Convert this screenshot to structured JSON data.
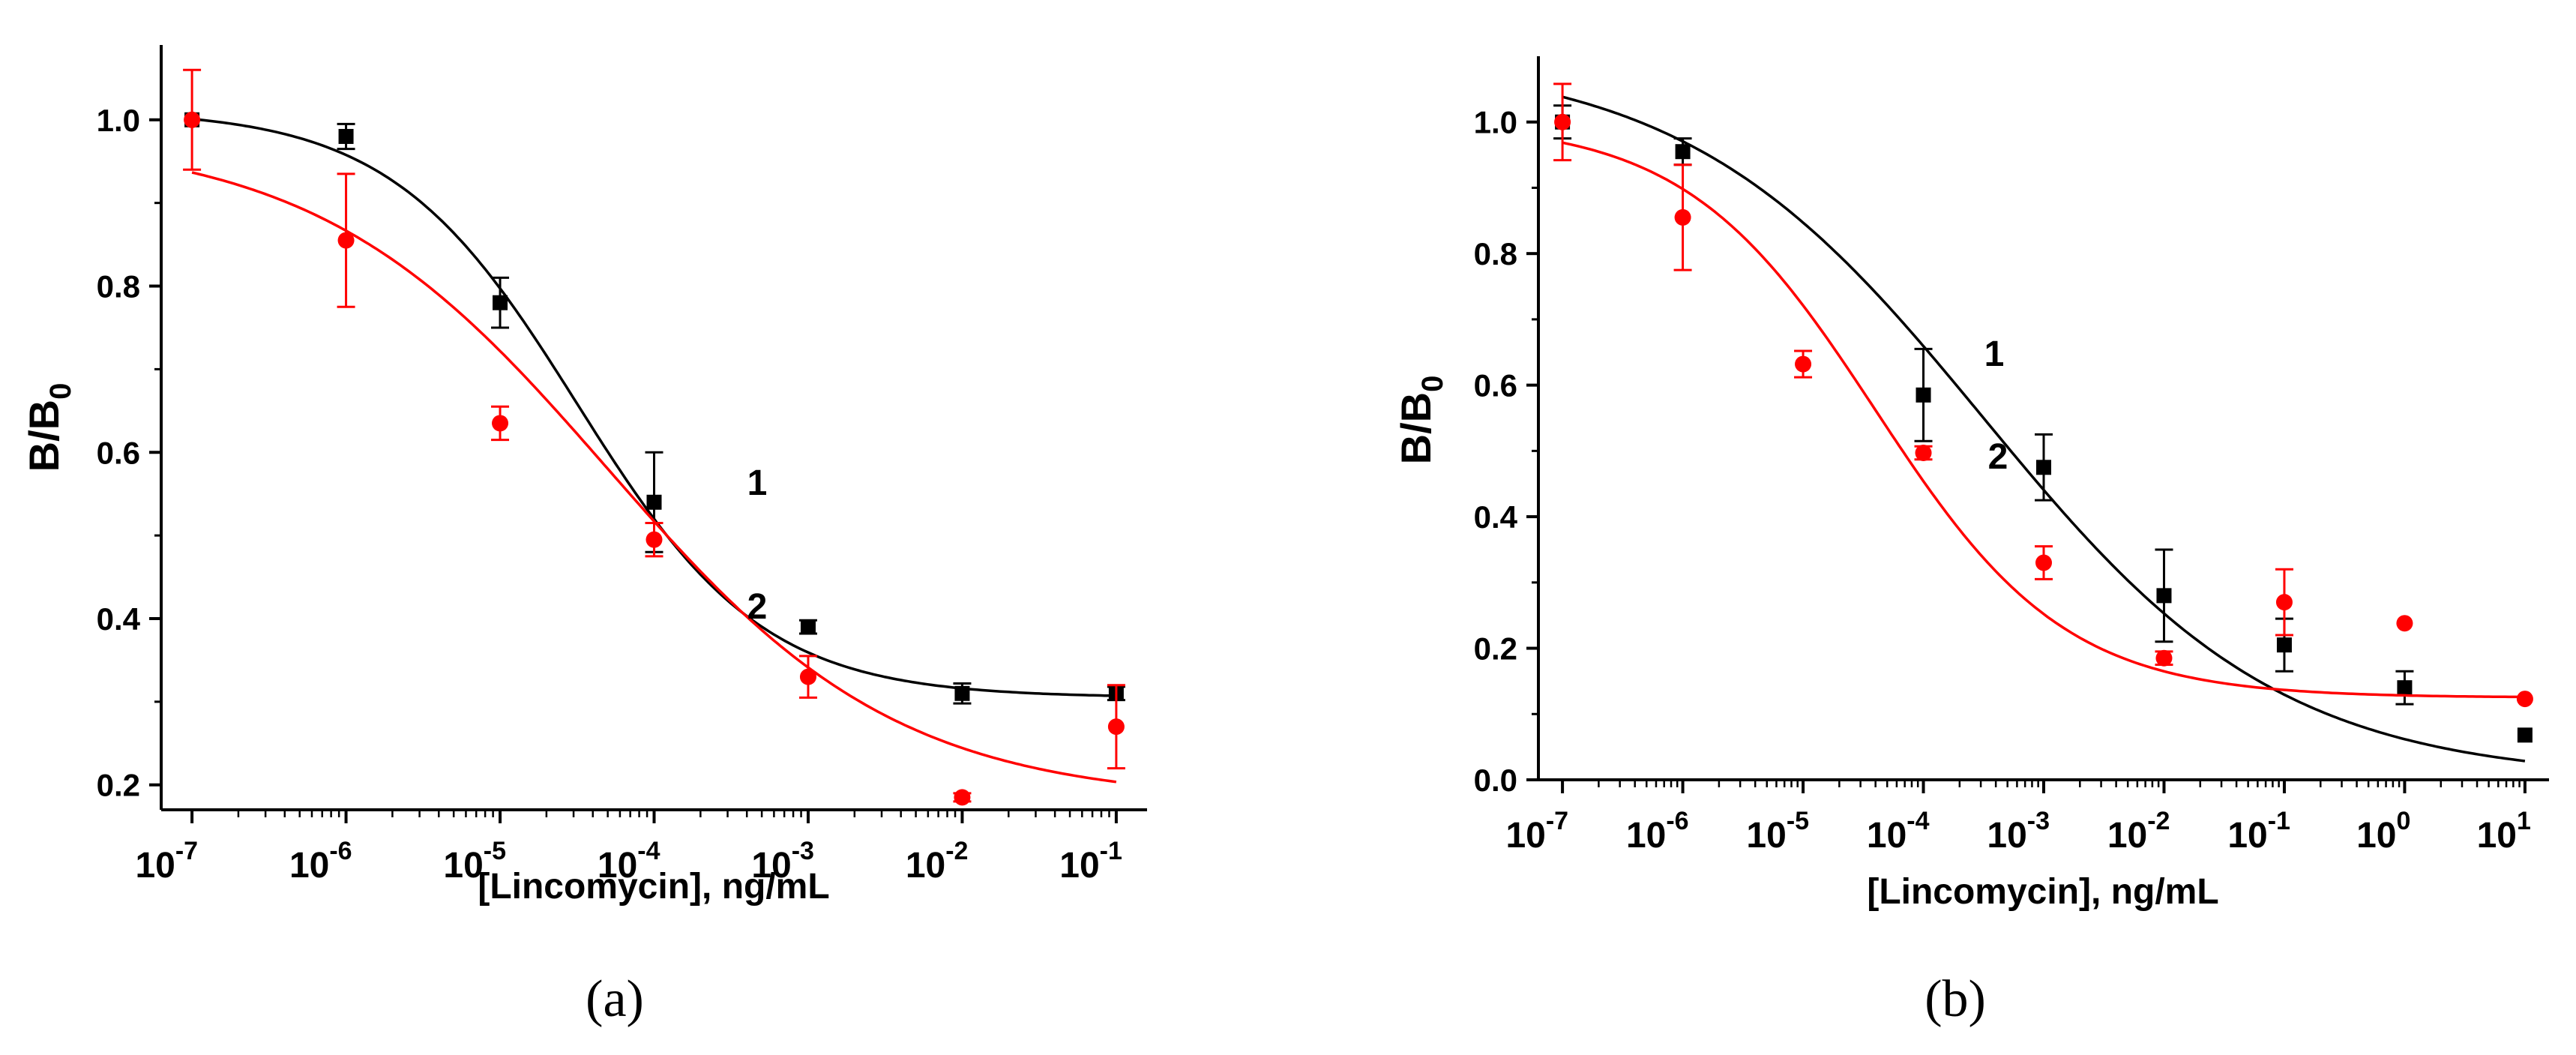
{
  "figure": {
    "panel_labels": [
      "(a)",
      "(b)"
    ]
  },
  "colors": {
    "series1": "#000000",
    "series2": "#ff0000"
  },
  "chart_data": [
    {
      "type": "scatter",
      "panel": "(a)",
      "xlabel": "[Lincomycin], ng/mL",
      "ylabel_main": "B/B",
      "ylabel_sub": "0",
      "xscale": "log",
      "xlim_exp": [
        -7,
        -1
      ],
      "x_tick_base": "10",
      "x_tick_exponents": [
        "-7",
        "-6",
        "-5",
        "-4",
        "-3",
        "-2",
        "-1"
      ],
      "ylim": [
        0.17,
        1.09
      ],
      "y_ticks": [
        "0.2",
        "0.4",
        "0.6",
        "0.8",
        "1.0"
      ],
      "series": [
        {
          "name": "1",
          "color": "#000000",
          "marker": "square",
          "x_exp": [
            -7,
            -6,
            -5,
            -4,
            -3,
            -2,
            -1
          ],
          "y": [
            1.0,
            0.98,
            0.78,
            0.54,
            0.39,
            0.31,
            0.31
          ],
          "err": [
            0.0,
            0.015,
            0.03,
            0.06,
            0.008,
            0.012,
            0.008
          ],
          "fit": {
            "A1": 1.012,
            "A2": 0.305,
            "x0_exp": -4.5,
            "p": 0.72
          }
        },
        {
          "name": "2",
          "color": "#ff0000",
          "marker": "circle",
          "x_exp": [
            -7,
            -6,
            -5,
            -4,
            -3,
            -2,
            -1
          ],
          "y": [
            1.0,
            0.855,
            0.635,
            0.495,
            0.33,
            0.185,
            0.27
          ],
          "err": [
            0.06,
            0.08,
            0.02,
            0.02,
            0.025,
            0.005,
            0.05
          ],
          "fit": {
            "A1": 0.98,
            "A2": 0.18,
            "x0_exp": -4.3,
            "p": 0.46
          }
        }
      ]
    },
    {
      "type": "scatter",
      "panel": "(b)",
      "xlabel": "[Lincomycin], ng/mL",
      "ylabel_main": "B/B",
      "ylabel_sub": "0",
      "xscale": "log",
      "xlim_exp": [
        -7,
        1
      ],
      "x_tick_base": "10",
      "x_tick_exponents": [
        "-7",
        "-6",
        "-5",
        "-4",
        "-3",
        "-2",
        "-1",
        "0",
        "1"
      ],
      "ylim": [
        0.0,
        1.1
      ],
      "y_ticks": [
        "0.0",
        "0.2",
        "0.4",
        "0.6",
        "0.8",
        "1.0"
      ],
      "series": [
        {
          "name": "1",
          "color": "#000000",
          "marker": "square",
          "x_exp": [
            -7,
            -6,
            -4,
            -3,
            -2,
            -1,
            0,
            1
          ],
          "y": [
            1.0,
            0.955,
            0.585,
            0.475,
            0.28,
            0.205,
            0.14,
            0.068
          ],
          "err": [
            0.025,
            0.02,
            0.07,
            0.05,
            0.07,
            0.04,
            0.025,
            0.0
          ],
          "fit": {
            "A1": 1.1,
            "A2": 0.0,
            "x0_exp": -3.5,
            "p": 0.35
          }
        },
        {
          "name": "2",
          "color": "#ff0000",
          "marker": "circle",
          "x_exp": [
            -7,
            -6,
            -5,
            -4,
            -3,
            -2,
            -1,
            0,
            1
          ],
          "y": [
            1.0,
            0.855,
            0.632,
            0.497,
            0.33,
            0.185,
            0.27,
            0.238,
            0.123
          ],
          "err": [
            0.058,
            0.08,
            0.02,
            0.01,
            0.025,
            0.01,
            0.05,
            0.0,
            0.0
          ],
          "fit": {
            "A1": 1.0,
            "A2": 0.125,
            "x0_exp": -4.4,
            "p": 0.55
          }
        }
      ]
    }
  ]
}
